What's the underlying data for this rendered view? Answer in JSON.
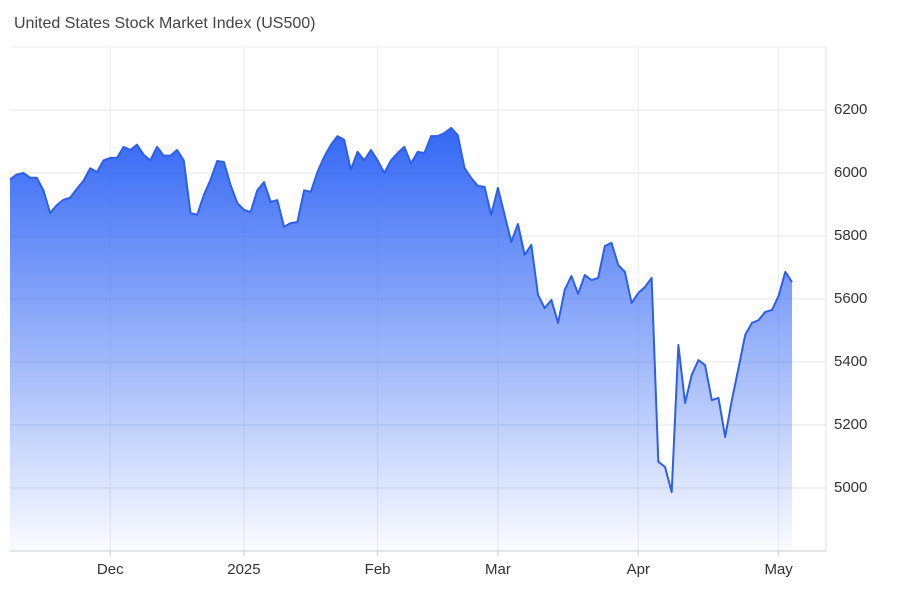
{
  "chart_data": {
    "type": "area",
    "title": "United States Stock Market Index (US500)",
    "categories": [
      null,
      null,
      null,
      null,
      null,
      null,
      null,
      null,
      null,
      null,
      null,
      null,
      null,
      null,
      null,
      "Dec",
      null,
      null,
      null,
      null,
      null,
      null,
      null,
      null,
      null,
      null,
      null,
      null,
      null,
      null,
      null,
      null,
      null,
      null,
      null,
      "2025",
      null,
      null,
      null,
      null,
      null,
      null,
      null,
      null,
      null,
      null,
      null,
      null,
      null,
      null,
      null,
      null,
      null,
      null,
      null,
      "Feb",
      null,
      null,
      null,
      null,
      null,
      null,
      null,
      null,
      null,
      null,
      null,
      null,
      null,
      null,
      null,
      null,
      null,
      "Mar",
      null,
      null,
      null,
      null,
      null,
      null,
      null,
      null,
      null,
      null,
      null,
      null,
      null,
      null,
      null,
      null,
      null,
      null,
      null,
      null,
      "Apr",
      null,
      null,
      null,
      null,
      null,
      null,
      null,
      null,
      null,
      null,
      null,
      null,
      null,
      null,
      null,
      null,
      null,
      null,
      null,
      null,
      "May",
      null,
      null
    ],
    "values": [
      5980,
      5995,
      6000,
      5985,
      5985,
      5945,
      5873,
      5898,
      5915,
      5921,
      5950,
      5975,
      6015,
      6003,
      6040,
      6048,
      6048,
      6083,
      6073,
      6090,
      6058,
      6040,
      6083,
      6055,
      6055,
      6073,
      6040,
      5873,
      5867,
      5930,
      5978,
      6038,
      6035,
      5962,
      5905,
      5883,
      5876,
      5945,
      5971,
      5908,
      5914,
      5829,
      5841,
      5844,
      5945,
      5940,
      6003,
      6051,
      6089,
      6117,
      6105,
      6010,
      6067,
      6040,
      6073,
      6040,
      6000,
      6040,
      6063,
      6083,
      6030,
      6067,
      6063,
      6117,
      6117,
      6127,
      6143,
      6120,
      6016,
      5984,
      5959,
      5956,
      5867,
      5953,
      5867,
      5781,
      5838,
      5740,
      5772,
      5613,
      5571,
      5597,
      5524,
      5629,
      5673,
      5616,
      5676,
      5660,
      5667,
      5768,
      5778,
      5708,
      5686,
      5587,
      5619,
      5638,
      5667,
      5083,
      5067,
      4987,
      5454,
      5270,
      5359,
      5406,
      5390,
      5279,
      5286,
      5162,
      5279,
      5381,
      5486,
      5524,
      5533,
      5559,
      5565,
      5610,
      5686,
      5654
    ],
    "color": "#2d5fe8",
    "ylim": [
      4800,
      6400
    ],
    "yticks": [
      5000,
      5200,
      5400,
      5600,
      5800,
      6000,
      6200
    ],
    "grid": true
  }
}
